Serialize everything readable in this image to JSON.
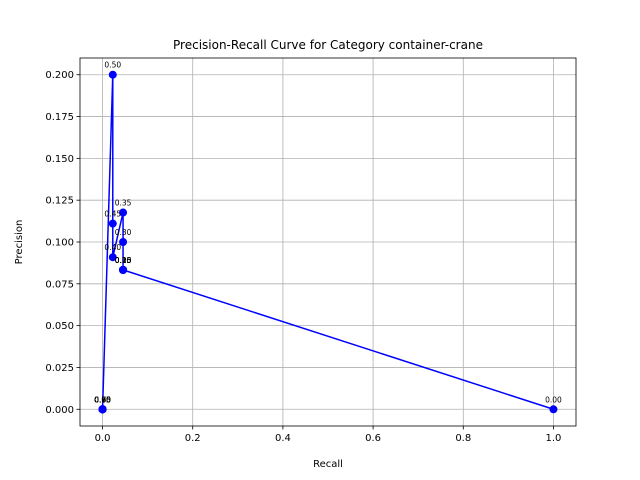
{
  "chart_data": {
    "type": "line",
    "title": "Precision-Recall Curve for Category container-crane",
    "xlabel": "Recall",
    "ylabel": "Precision",
    "xlim": [
      -0.05,
      1.05
    ],
    "ylim": [
      -0.01,
      0.21
    ],
    "xticks": [
      0.0,
      0.2,
      0.4,
      0.6,
      0.8,
      1.0
    ],
    "xtick_labels": [
      "0.0",
      "0.2",
      "0.4",
      "0.6",
      "0.8",
      "1.0"
    ],
    "yticks": [
      0.0,
      0.025,
      0.05,
      0.075,
      0.1,
      0.125,
      0.15,
      0.175,
      0.2
    ],
    "ytick_labels": [
      "0.000",
      "0.025",
      "0.050",
      "0.075",
      "0.100",
      "0.125",
      "0.150",
      "0.175",
      "0.200"
    ],
    "grid": true,
    "line_color": "#0000ff",
    "series": [
      {
        "points": [
          {
            "x": 0.0,
            "y": 0.0,
            "label": "0.95"
          },
          {
            "x": 0.0,
            "y": 0.0,
            "label": "0.90"
          },
          {
            "x": 0.0,
            "y": 0.0,
            "label": "0.85"
          },
          {
            "x": 0.0,
            "y": 0.0,
            "label": "0.80"
          },
          {
            "x": 0.0,
            "y": 0.0,
            "label": "0.75"
          },
          {
            "x": 0.0,
            "y": 0.0,
            "label": "0.70"
          },
          {
            "x": 0.0,
            "y": 0.0,
            "label": "0.65"
          },
          {
            "x": 0.0,
            "y": 0.0,
            "label": "0.60"
          },
          {
            "x": 0.0,
            "y": 0.0,
            "label": "0.55"
          },
          {
            "x": 0.0227,
            "y": 0.2,
            "label": "0.50"
          },
          {
            "x": 0.0227,
            "y": 0.111,
            "label": "0.45"
          },
          {
            "x": 0.0227,
            "y": 0.0909,
            "label": "0.40"
          },
          {
            "x": 0.0455,
            "y": 0.1176,
            "label": "0.35"
          },
          {
            "x": 0.0455,
            "y": 0.1,
            "label": "0.30"
          },
          {
            "x": 0.0455,
            "y": 0.0833,
            "label": "0.25"
          },
          {
            "x": 0.0455,
            "y": 0.0833,
            "label": "0.20"
          },
          {
            "x": 0.0455,
            "y": 0.0833,
            "label": "0.15"
          },
          {
            "x": 0.0455,
            "y": 0.0833,
            "label": "0.10"
          },
          {
            "x": 0.0455,
            "y": 0.0833,
            "label": "0.05"
          },
          {
            "x": 1.0,
            "y": 0.0,
            "label": "0.00"
          }
        ]
      }
    ]
  }
}
